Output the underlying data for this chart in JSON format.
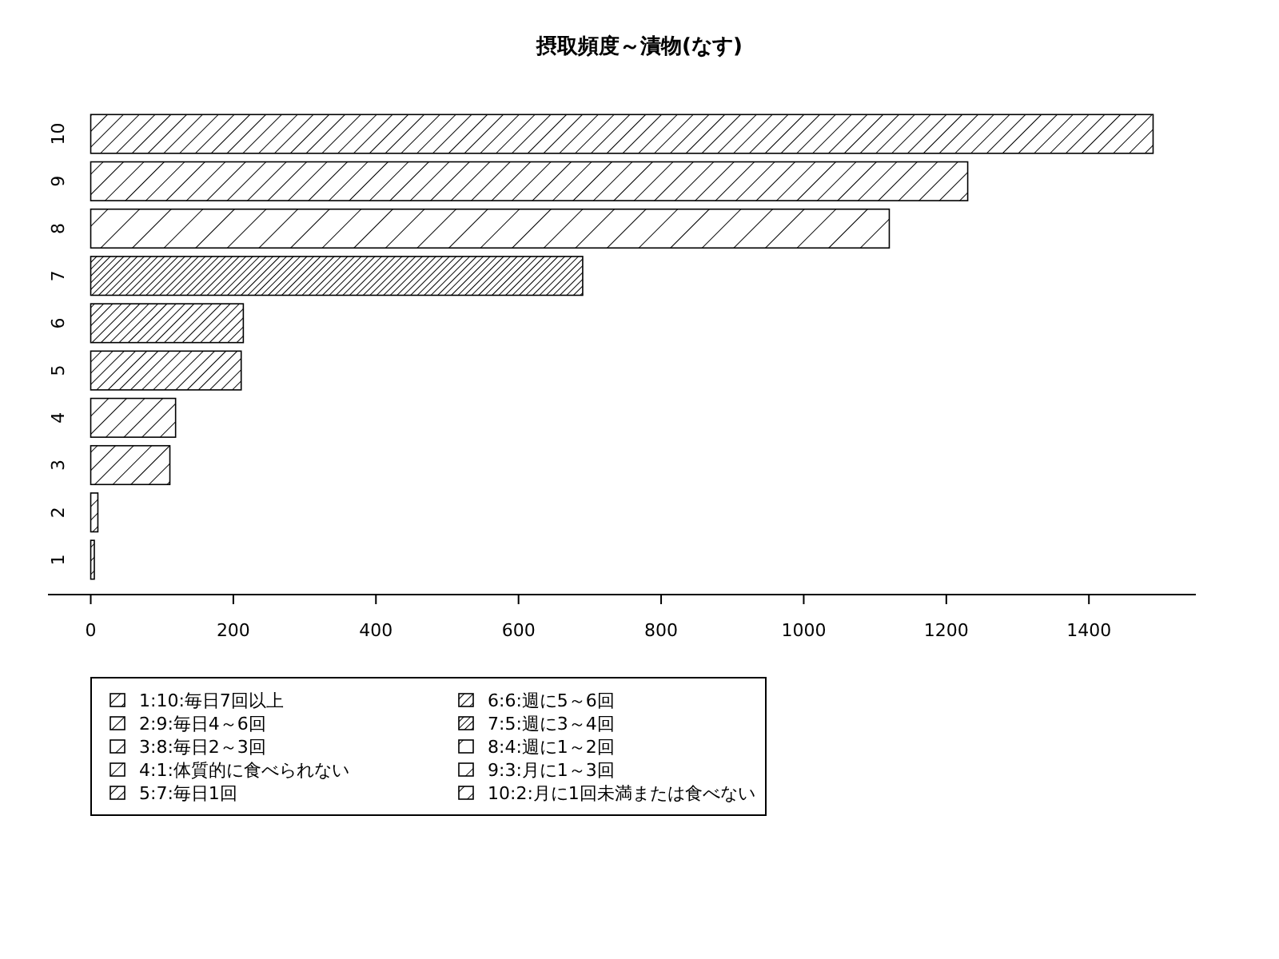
{
  "chart_data": {
    "type": "bar",
    "title": "摂取頻度～漬物(なす)",
    "orientation": "horizontal",
    "legend": "bottom left",
    "categories": [
      "10",
      "9",
      "8",
      "7",
      "6",
      "5",
      "4",
      "3",
      "2",
      "1"
    ],
    "xlim": [
      -60,
      1550
    ],
    "xticks": [
      0,
      200,
      400,
      600,
      800,
      1000,
      1200,
      1400
    ],
    "series": [
      {
        "name": "1:10:毎日7回以上",
        "color": "#000000",
        "values": [
          null,
          null,
          null,
          null,
          null,
          null,
          null,
          null,
          null,
          5
        ]
      },
      {
        "name": "2:9:毎日4～6回",
        "color": "#000000",
        "values": [
          null,
          null,
          null,
          null,
          null,
          null,
          null,
          null,
          10,
          null
        ]
      },
      {
        "name": "3:8:毎日2～3回",
        "color": "#000000",
        "values": [
          null,
          null,
          null,
          null,
          null,
          null,
          null,
          111,
          null,
          null
        ]
      },
      {
        "name": "4:1:体質的に食べられない",
        "color": "#000000",
        "values": [
          null,
          null,
          null,
          null,
          null,
          null,
          119,
          null,
          null,
          null
        ]
      },
      {
        "name": "5:7:毎日1回",
        "color": "#000000",
        "values": [
          null,
          null,
          null,
          null,
          null,
          211,
          null,
          null,
          null,
          null
        ]
      },
      {
        "name": "6:6:週に5～6回",
        "color": "#000000",
        "values": [
          null,
          null,
          null,
          null,
          214,
          null,
          null,
          null,
          null,
          null
        ]
      },
      {
        "name": "7:5:週に3～4回",
        "color": "#000000",
        "values": [
          null,
          null,
          null,
          690,
          null,
          null,
          null,
          null,
          null,
          null
        ]
      },
      {
        "name": "8:4:週に1～2回",
        "color": "#000000",
        "values": [
          null,
          null,
          1120,
          null,
          null,
          null,
          null,
          null,
          null,
          null
        ]
      },
      {
        "name": "9:3:月に1～3回",
        "color": "#000000",
        "values": [
          null,
          1230,
          null,
          null,
          null,
          null,
          null,
          null,
          null,
          null
        ]
      },
      {
        "name": "10:2:月に1回未満または食べない",
        "color": "#000000",
        "values": [
          1490,
          null,
          null,
          null,
          null,
          null,
          null,
          null,
          null,
          null
        ]
      }
    ]
  }
}
